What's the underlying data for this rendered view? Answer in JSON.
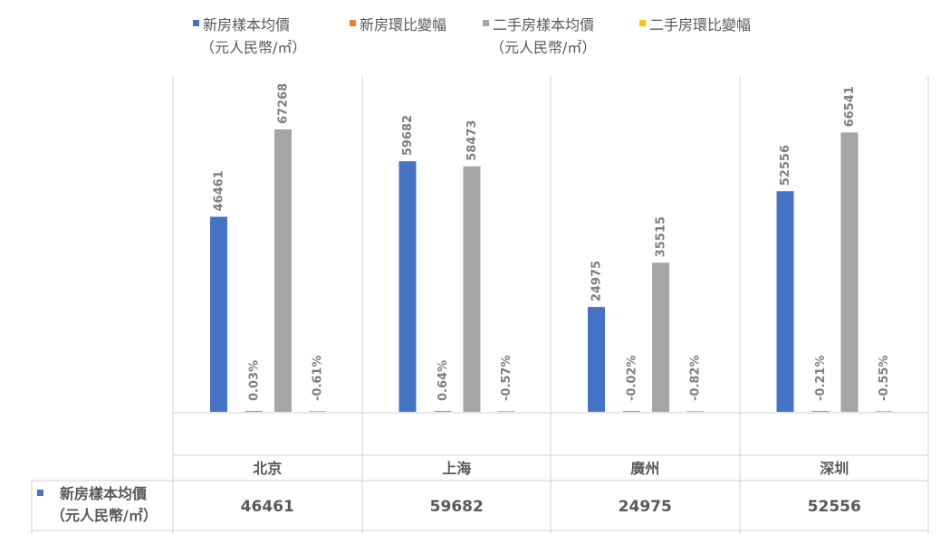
{
  "chart_data": {
    "type": "bar",
    "categories": [
      "北京",
      "上海",
      "廣州",
      "深圳"
    ],
    "series": [
      {
        "name": "新房樣本均價",
        "unit": "（元人民幣/㎡）",
        "color": "#4472c4",
        "values": [
          46461,
          59682,
          24975,
          52556
        ],
        "labels": [
          "46461",
          "59682",
          "24975",
          "52556"
        ]
      },
      {
        "name": "新房環比變幅",
        "unit": "",
        "color": "#ed7d31",
        "values": [
          0.03,
          0.64,
          -0.02,
          -0.21
        ],
        "labels": [
          "0.03%",
          "0.64%",
          "-0.02%",
          "-0.21%"
        ]
      },
      {
        "name": "二手房樣本均價",
        "unit": "（元人民幣/㎡）",
        "color": "#a5a5a5",
        "values": [
          67268,
          58473,
          35515,
          66541
        ],
        "labels": [
          "67268",
          "58473",
          "35515",
          "66541"
        ]
      },
      {
        "name": "二手房環比變幅",
        "unit": "",
        "color": "#ffc000",
        "values": [
          -0.61,
          -0.57,
          -0.82,
          -0.55
        ],
        "labels": [
          "-0.61%",
          "-0.57%",
          "-0.82%",
          "-0.55%"
        ]
      }
    ],
    "ylim": [
      0,
      80000
    ],
    "grid": false,
    "legend_position": "top",
    "table": {
      "row_label": "新房樣本均價",
      "row_unit": "（元人民幣/㎡）",
      "values": [
        "46461",
        "59682",
        "24975",
        "52556"
      ]
    }
  }
}
